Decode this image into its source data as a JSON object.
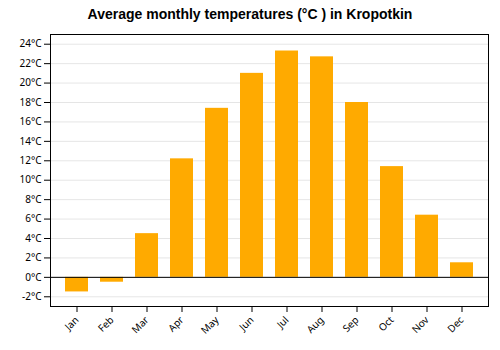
{
  "chart_data": {
    "type": "bar",
    "title": "Average monthly temperatures (°C ) in Kropotkin",
    "categories": [
      "Jan",
      "Feb",
      "Mar",
      "Apr",
      "May",
      "Jun",
      "Jul",
      "Aug",
      "Sep",
      "Oct",
      "Nov",
      "Dec"
    ],
    "values": [
      -1.5,
      -0.5,
      4.5,
      12.2,
      17.4,
      21.0,
      23.3,
      22.7,
      18.0,
      11.4,
      6.4,
      1.5
    ],
    "color": "#FFAA00",
    "ylim": [
      -3,
      25
    ],
    "yticks": [
      {
        "value": -2,
        "label": "-2°C"
      },
      {
        "value": 0,
        "label": "0°C"
      },
      {
        "value": 2,
        "label": "2°C"
      },
      {
        "value": 4,
        "label": "4°C"
      },
      {
        "value": 6,
        "label": "6°C"
      },
      {
        "value": 8,
        "label": "8°C"
      },
      {
        "value": 10,
        "label": "10°C"
      },
      {
        "value": 12,
        "label": "12°C"
      },
      {
        "value": 14,
        "label": "14°C"
      },
      {
        "value": 16,
        "label": "16°C"
      },
      {
        "value": 18,
        "label": "18°C"
      },
      {
        "value": 20,
        "label": "20°C"
      },
      {
        "value": 22,
        "label": "22°C"
      },
      {
        "value": 24,
        "label": "24°C"
      }
    ],
    "grid": true
  }
}
